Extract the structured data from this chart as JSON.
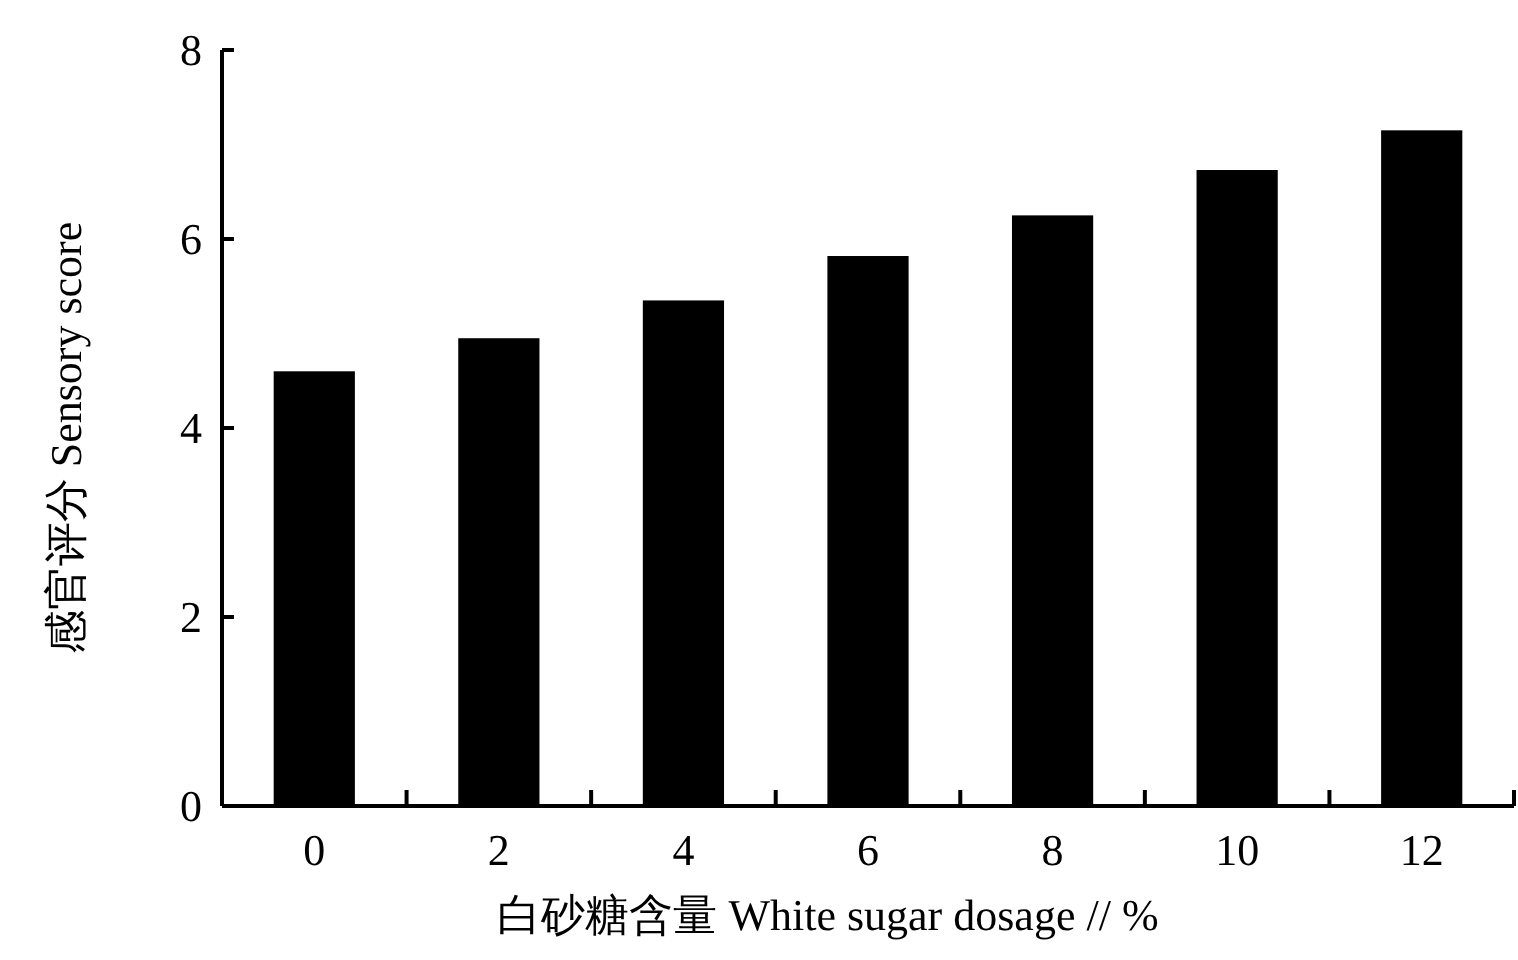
{
  "chart_data": {
    "type": "bar",
    "xlabel": "白砂糖含量 White sugar dosage // %",
    "ylabel": "感官评分 Sensory score",
    "categories": [
      "0",
      "2",
      "4",
      "6",
      "8",
      "10",
      "12"
    ],
    "values": [
      4.6,
      4.95,
      5.35,
      5.82,
      6.25,
      6.73,
      7.15
    ],
    "color": "#000000",
    "ylim": [
      0,
      8
    ],
    "yticks": [
      0,
      2,
      4,
      6,
      8
    ],
    "grid": false
  }
}
